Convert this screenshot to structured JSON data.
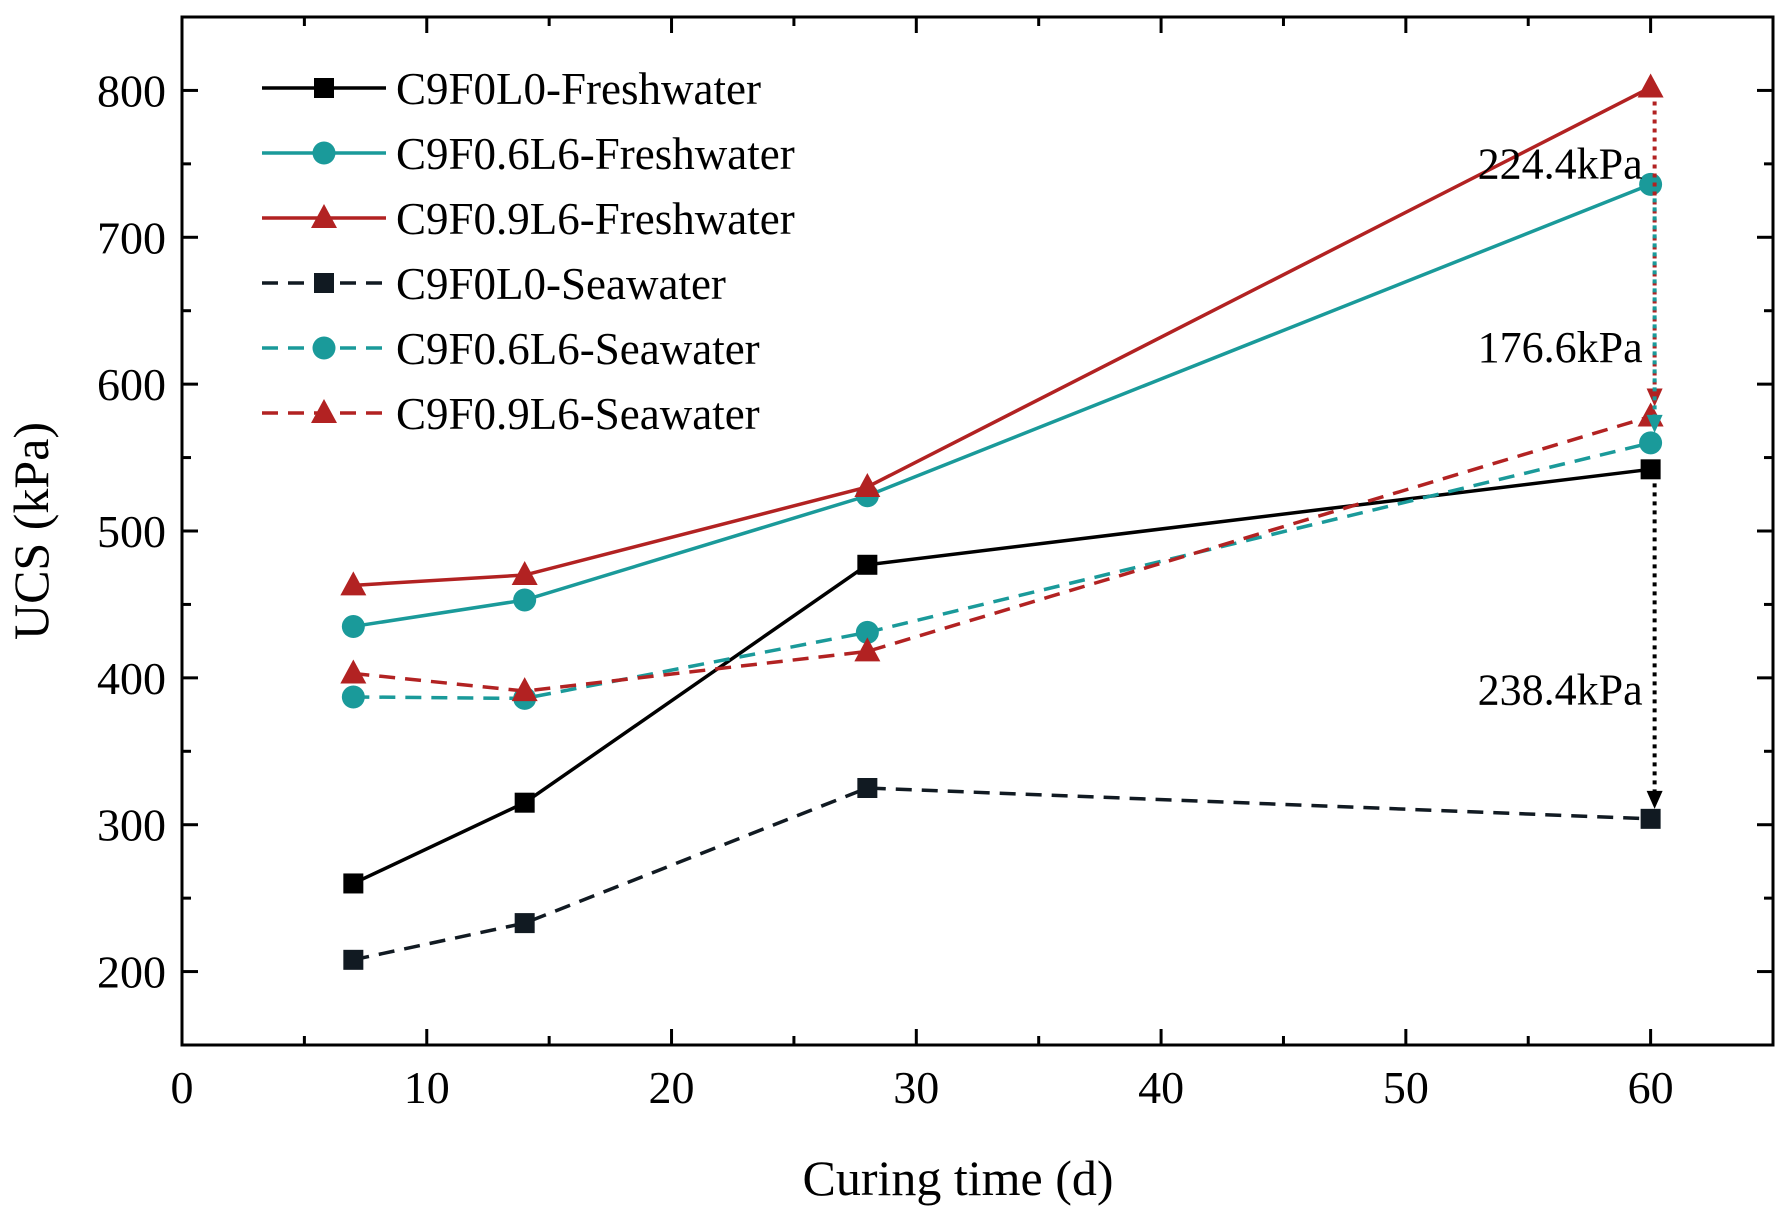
{
  "chart_data": {
    "type": "line",
    "title": "",
    "xlabel": "Curing time (d)",
    "ylabel": "UCS (kPa)",
    "xlim": [
      0,
      65
    ],
    "ylim": [
      150,
      850
    ],
    "x_ticks": [
      0,
      10,
      20,
      30,
      40,
      50,
      60
    ],
    "y_ticks": [
      200,
      300,
      400,
      500,
      600,
      700,
      800
    ],
    "x": [
      7,
      14,
      28,
      60
    ],
    "series": [
      {
        "name": "C9F0L0-Freshwater",
        "values": [
          260,
          315,
          477,
          542
        ],
        "color": "#000000",
        "marker": "square",
        "dash": "solid"
      },
      {
        "name": "C9F0.6L6-Freshwater",
        "values": [
          435,
          453,
          524,
          736
        ],
        "color": "#1a9a9a",
        "marker": "circle",
        "dash": "solid"
      },
      {
        "name": "C9F0.9L6-Freshwater",
        "values": [
          463,
          470,
          530,
          802
        ],
        "color": "#b22222",
        "marker": "triangle",
        "dash": "solid"
      },
      {
        "name": "C9F0L0-Seawater",
        "values": [
          208,
          233,
          325,
          304
        ],
        "color": "#111a22",
        "marker": "square",
        "dash": "dashed"
      },
      {
        "name": "C9F0.6L6-Seawater",
        "values": [
          387,
          386,
          431,
          560
        ],
        "color": "#1a9a9a",
        "marker": "circle",
        "dash": "dashed"
      },
      {
        "name": "C9F0.9L6-Seawater",
        "values": [
          403,
          391,
          418,
          578
        ],
        "color": "#b22222",
        "marker": "triangle",
        "dash": "dashed"
      }
    ],
    "annotations": [
      {
        "text": "224.4kPa",
        "at_x": 60,
        "from": 802,
        "to": 578,
        "color": "#b22222",
        "label_y": 740
      },
      {
        "text": "176.6kPa",
        "at_x": 60,
        "from": 736,
        "to": 560,
        "color": "#1a9a9a",
        "label_y": 615
      },
      {
        "text": "238.4kPa",
        "at_x": 60,
        "from": 542,
        "to": 304,
        "color": "#000000",
        "label_y": 382
      }
    ],
    "legend_position": "top-left",
    "grid": false
  }
}
